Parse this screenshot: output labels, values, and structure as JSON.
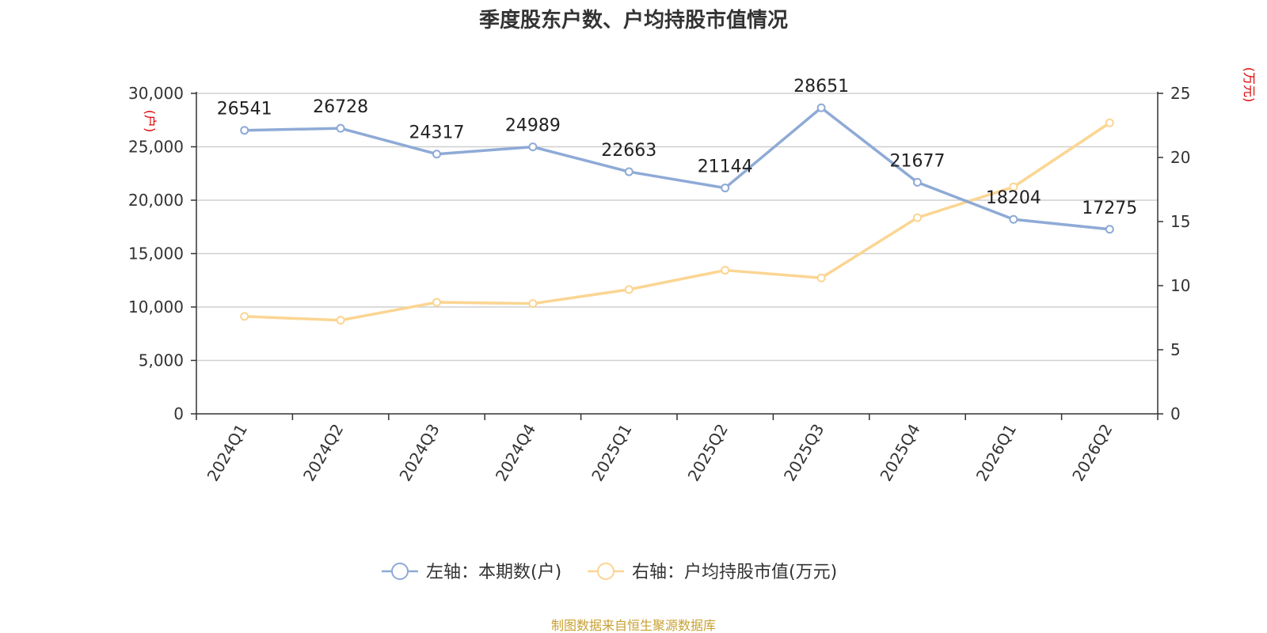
{
  "title": "季度股东户数、户均持股市值情况",
  "source": "制图数据来自恒生聚源数据库",
  "colors": {
    "series1": "#8eaad6",
    "series2": "#fbd592",
    "grid": "#cfcfcf",
    "axis": "#333333",
    "unit": "#e00000",
    "source": "#c8a032"
  },
  "chart_data": {
    "type": "line",
    "title": "季度股东户数、户均持股市值情况",
    "categories": [
      "2024Q1",
      "2024Q2",
      "2024Q3",
      "2024Q4",
      "2025Q1",
      "2025Q2",
      "2025Q3",
      "2025Q4",
      "2026Q1",
      "2026Q2"
    ],
    "left_axis": {
      "unit": "(户)",
      "ylim": [
        0,
        30000
      ],
      "ticks": [
        "0",
        "5,000",
        "10,000",
        "15,000",
        "20,000",
        "25,000",
        "30,000"
      ]
    },
    "right_axis": {
      "unit": "(万元)",
      "ylim": [
        0,
        25
      ],
      "ticks": [
        "0",
        "5",
        "10",
        "15",
        "20",
        "25"
      ]
    },
    "series": [
      {
        "name": "左轴：本期数(户)",
        "axis": "left",
        "values": [
          26541,
          26728,
          24317,
          24989,
          22663,
          21144,
          28651,
          21677,
          18204,
          17275
        ],
        "labels": [
          "26541",
          "26728",
          "24317",
          "24989",
          "22663",
          "21144",
          "28651",
          "21677",
          "18204",
          "17275"
        ]
      },
      {
        "name": "右轴：户均持股市值(万元)",
        "axis": "right",
        "values": [
          7.6,
          7.3,
          8.7,
          8.6,
          9.7,
          11.2,
          10.6,
          15.3,
          17.7,
          22.7
        ]
      }
    ],
    "grid": true,
    "legend_position": "bottom-center"
  }
}
